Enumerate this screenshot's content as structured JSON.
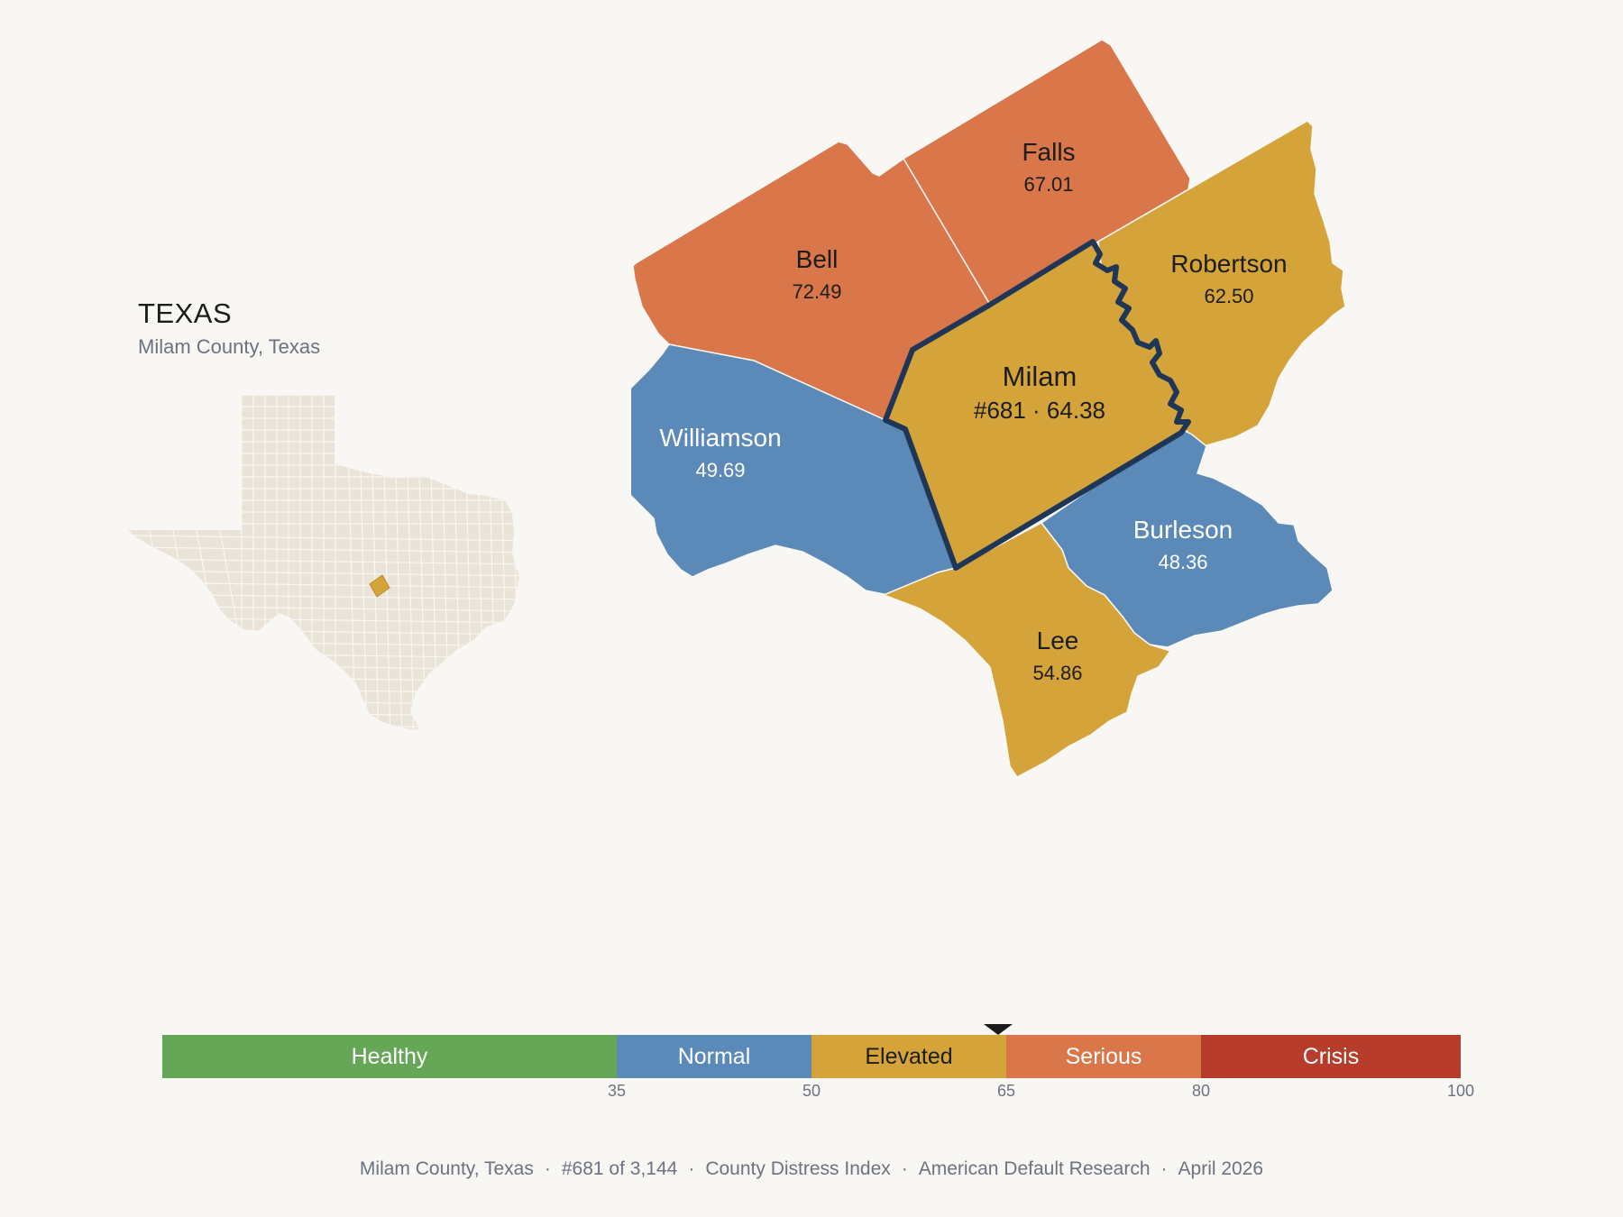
{
  "state": {
    "title": "TEXAS",
    "subtitle": "Milam County, Texas"
  },
  "colors": {
    "healthy": "#66a657",
    "normal": "#5b89b8",
    "elevated": "#d4a43b",
    "serious": "#d9764a",
    "crisis": "#b83c2b",
    "inset_fill": "#e9e3d8",
    "focus_outline": "#1f3657",
    "background": "#f9f7f3"
  },
  "counties": [
    {
      "name": "Falls",
      "value": "67.01",
      "category": "serious"
    },
    {
      "name": "Bell",
      "value": "72.49",
      "category": "serious"
    },
    {
      "name": "Robertson",
      "value": "62.50",
      "category": "elevated"
    },
    {
      "name": "Williamson",
      "value": "49.69",
      "category": "normal"
    },
    {
      "name": "Burleson",
      "value": "48.36",
      "category": "normal"
    },
    {
      "name": "Lee",
      "value": "54.86",
      "category": "elevated"
    }
  ],
  "focus": {
    "name": "Milam",
    "label": "#681 · 64.38",
    "score": 64.38,
    "category": "elevated"
  },
  "scale": {
    "segments": [
      {
        "label": "Healthy",
        "from": 0,
        "to": 35,
        "category": "healthy"
      },
      {
        "label": "Normal",
        "from": 35,
        "to": 50,
        "category": "normal"
      },
      {
        "label": "Elevated",
        "from": 50,
        "to": 65,
        "category": "elevated"
      },
      {
        "label": "Serious",
        "from": 65,
        "to": 80,
        "category": "serious"
      },
      {
        "label": "Crisis",
        "from": 80,
        "to": 100,
        "category": "crisis"
      }
    ],
    "ticks": [
      "35",
      "50",
      "65",
      "80",
      "100"
    ],
    "marker_value": 64.38
  },
  "footer": {
    "items": [
      "Milam County, Texas",
      "#681 of 3,144",
      "County Distress Index",
      "American Default Research",
      "April 2026"
    ],
    "separator": "·"
  }
}
